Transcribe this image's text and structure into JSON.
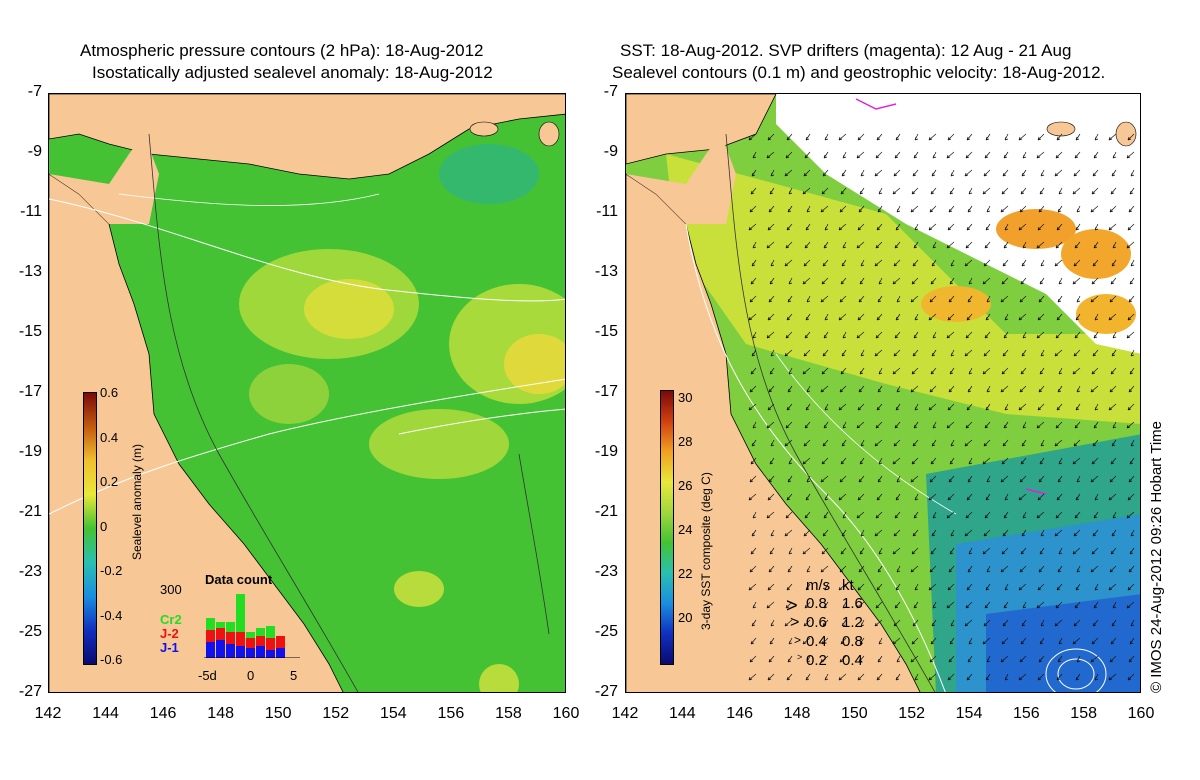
{
  "left_panel": {
    "title_line1": "Atmospheric pressure contours (2 hPa): 18-Aug-2012",
    "title_line2": "Isostatically adjusted sealevel anomaly: 18-Aug-2012",
    "colorbar_title": "Sealevel anomaly (m)",
    "colorbar_ticks": [
      "0.6",
      "0.4",
      "0.2",
      "0",
      "-0.2",
      "-0.4",
      "-0.6"
    ],
    "data_count": {
      "title": "Data count",
      "max_label": "300",
      "series": [
        {
          "name": "Cr2",
          "color": "#22dd22"
        },
        {
          "name": "J-2",
          "color": "#ee1111"
        },
        {
          "name": "J-1",
          "color": "#1111ee"
        }
      ],
      "x_ticks": [
        "-5d",
        "0",
        "5"
      ]
    }
  },
  "right_panel": {
    "title_line1": "SST: 18-Aug-2012. SVP drifters (magenta): 12 Aug - 21 Aug",
    "title_line2": "Sealevel contours (0.1 m) and geostrophic velocity: 18-Aug-2012.",
    "colorbar_title": "3-day SST composite (deg C)",
    "colorbar_ticks": [
      "30",
      "28",
      "26",
      "24",
      "22",
      "20"
    ],
    "velocity_legend": {
      "header_ms": "m/s",
      "header_kt": "kt",
      "rows": [
        {
          "ms": "0.8",
          "kt": "1.6"
        },
        {
          "ms": "0.6",
          "kt": "1.2"
        },
        {
          "ms": "0.4",
          "kt": "0.8"
        },
        {
          "ms": "0.2",
          "kt": "0.4"
        }
      ]
    },
    "credit": "© IMOS 24-Aug-2012 09:26 Hobart Time"
  },
  "axes": {
    "y_ticks": [
      "-7",
      "-9",
      "-11",
      "-13",
      "-15",
      "-17",
      "-19",
      "-21",
      "-23",
      "-25",
      "-27"
    ],
    "x_ticks": [
      "142",
      "144",
      "146",
      "148",
      "150",
      "152",
      "154",
      "156",
      "158",
      "160"
    ]
  },
  "colors": {
    "land": "#f7c896",
    "ocean_green": "#44c234",
    "anomaly_high": "#e3e43a",
    "cloud": "#ffffff",
    "sst_cool": "#2b8fd8"
  }
}
